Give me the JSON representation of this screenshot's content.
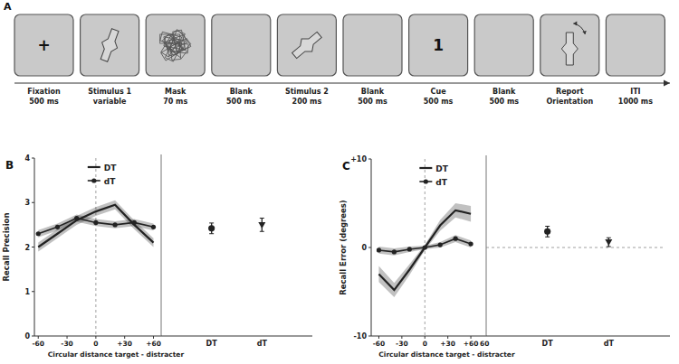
{
  "diagram": {
    "label": "A",
    "frames": [
      {
        "symbol": "+",
        "caption": [
          "Fixation",
          "500 ms"
        ]
      },
      {
        "caption": [
          "Stimulus 1",
          "variable"
        ]
      },
      {
        "caption": [
          "Mask",
          "70 ms"
        ]
      },
      {
        "caption": [
          "Blank",
          "500 ms"
        ]
      },
      {
        "caption": [
          "Stimulus 2",
          "200 ms"
        ]
      },
      {
        "caption": [
          "Blank",
          "500 ms"
        ]
      },
      {
        "symbol": "1",
        "caption": [
          "Cue",
          "500 ms"
        ]
      },
      {
        "caption": [
          "Blank",
          "500 ms"
        ]
      },
      {
        "caption": [
          "Report",
          "Orientation"
        ]
      },
      {
        "caption": [
          "ITI",
          "1000 ms"
        ]
      }
    ]
  },
  "chart_data": [
    {
      "type": "line",
      "title": "B",
      "xlabel": "Circular distance target - distracter",
      "ylabel": "Recall Precision",
      "x": [
        -60,
        -40,
        -20,
        0,
        20,
        40,
        60
      ],
      "series": [
        {
          "name": "DT",
          "color": "#222222",
          "marker": "none",
          "line_style": "solid",
          "values": [
            2.0,
            2.3,
            2.6,
            2.8,
            2.95,
            2.5,
            2.1
          ],
          "error": [
            0.1,
            0.1,
            0.1,
            0.1,
            0.1,
            0.1,
            0.1
          ]
        },
        {
          "name": "dT",
          "color": "#222222",
          "marker": "circle",
          "line_style": "solid",
          "values": [
            2.3,
            2.45,
            2.65,
            2.55,
            2.5,
            2.55,
            2.45
          ],
          "error": [
            0.08,
            0.08,
            0.08,
            0.08,
            0.08,
            0.08,
            0.08
          ]
        }
      ],
      "xlim": [
        -64,
        68
      ],
      "ylim": [
        0,
        4
      ],
      "xticks": [
        -60,
        -30,
        0,
        {
          "value": 30,
          "label": "+30"
        },
        {
          "value": 60,
          "label": "+60"
        }
      ],
      "yticks": [
        0,
        1,
        2,
        3,
        4
      ],
      "legend": "top"
    },
    {
      "type": "scatter",
      "tick_labels": "x",
      "ylim": [
        0,
        4
      ],
      "series": [
        {
          "name": "DT",
          "color": "#222222",
          "marker": "circle",
          "values": [
            2.42
          ],
          "error": [
            0.12
          ]
        },
        {
          "name": "dT",
          "color": "#222222",
          "marker": "triangle-down",
          "values": [
            2.5
          ],
          "error": [
            0.15
          ]
        }
      ]
    },
    {
      "type": "line",
      "title": "C",
      "xlabel": "Circular distance target - distracter",
      "ylabel": "Recall Error (degrees)",
      "x": [
        -60,
        -40,
        -20,
        0,
        20,
        40,
        60
      ],
      "series": [
        {
          "name": "DT",
          "color": "#222222",
          "marker": "none",
          "line_style": "solid",
          "values": [
            -3.0,
            -4.8,
            -2.5,
            0,
            2.5,
            4.2,
            3.8
          ],
          "error": [
            0.9,
            0.8,
            0.6,
            0.3,
            0.6,
            0.8,
            0.9
          ]
        },
        {
          "name": "dT",
          "color": "#222222",
          "marker": "circle",
          "line_style": "solid",
          "values": [
            -0.3,
            -0.5,
            -0.2,
            0,
            0.3,
            1.0,
            0.4
          ],
          "error": [
            0.4,
            0.4,
            0.3,
            0.2,
            0.3,
            0.4,
            0.4
          ]
        }
      ],
      "xlim": [
        -70,
        80
      ],
      "ylim": [
        -10,
        10
      ],
      "xticks": [
        -60,
        -30,
        0,
        {
          "value": 30,
          "label": "+30"
        },
        {
          "value": 60,
          "label": "+60"
        }
      ],
      "yticks": [
        -10,
        0,
        {
          "value": 10,
          "label": "+10"
        }
      ],
      "legend": "top",
      "annotations": [
        {
          "text": "60",
          "x": 78
        }
      ]
    },
    {
      "type": "scatter",
      "tick_labels": "x",
      "ylim": [
        -10,
        10
      ],
      "series": [
        {
          "name": "DT",
          "color": "#222222",
          "marker": "circle",
          "values": [
            1.8
          ],
          "error": [
            0.6
          ]
        },
        {
          "name": "dT",
          "color": "#222222",
          "marker": "triangle-down",
          "values": [
            0.6
          ],
          "error": [
            0.5
          ]
        }
      ]
    }
  ]
}
